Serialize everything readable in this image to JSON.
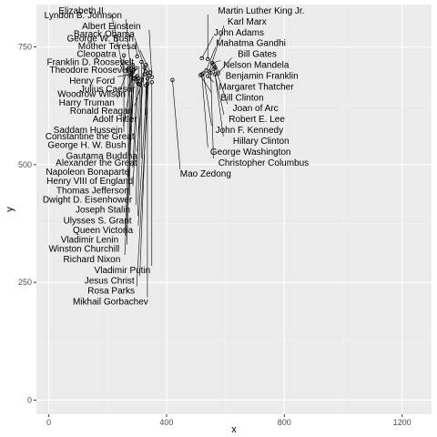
{
  "chart_data": {
    "type": "scatter",
    "xlabel": "x",
    "ylabel": "y",
    "xlim": [
      -42,
      1300
    ],
    "ylim": [
      -30,
      840
    ],
    "xticks": [
      0,
      400,
      800,
      1200
    ],
    "yticks": [
      0,
      250,
      500,
      750
    ],
    "grid": true,
    "points": [
      {
        "label": "Constantine the Great",
        "x": 255,
        "y": 732
      },
      {
        "label": "George W. Bush",
        "x": 300,
        "y": 730
      },
      {
        "label": "Alexander the Great",
        "x": 315,
        "y": 718
      },
      {
        "label": "Vladimir Lenin",
        "x": 285,
        "y": 712
      },
      {
        "label": "Woodrow Wilson",
        "x": 295,
        "y": 705
      },
      {
        "label": "Julius Caesar",
        "x": 330,
        "y": 712
      },
      {
        "label": "Gautama Buddha",
        "x": 325,
        "y": 706
      },
      {
        "label": "Cleopatra",
        "x": 290,
        "y": 702
      },
      {
        "label": "Winston Churchill",
        "x": 285,
        "y": 700
      },
      {
        "label": "Barack Obama",
        "x": 330,
        "y": 698
      },
      {
        "label": "Queen Victoria",
        "x": 335,
        "y": 694
      },
      {
        "label": "Mother Teresa",
        "x": 345,
        "y": 696
      },
      {
        "label": "Henry VIII of England",
        "x": 270,
        "y": 700
      },
      {
        "label": "Napoleon Bonaparte",
        "x": 300,
        "y": 688
      },
      {
        "label": "Ronald Reagan",
        "x": 325,
        "y": 692
      },
      {
        "label": "Rosa Parks",
        "x": 340,
        "y": 689
      },
      {
        "label": "Jesus Christ",
        "x": 335,
        "y": 683
      },
      {
        "label": "Dwight D. Eisenhower",
        "x": 275,
        "y": 690
      },
      {
        "label": "Thomas Jefferson",
        "x": 305,
        "y": 684
      },
      {
        "label": "John Adams",
        "x": 520,
        "y": 726
      },
      {
        "label": "Martin Luther King Jr.",
        "x": 540,
        "y": 724
      },
      {
        "label": "Harry Truman",
        "x": 270,
        "y": 704
      },
      {
        "label": "Nelson Mandela",
        "x": 555,
        "y": 716
      },
      {
        "label": "Benjamin Franklin",
        "x": 560,
        "y": 712
      },
      {
        "label": "Elizabeth II",
        "x": 250,
        "y": 710
      },
      {
        "label": "Robert E. Lee",
        "x": 560,
        "y": 703
      },
      {
        "label": "Joan of Arc",
        "x": 565,
        "y": 707
      },
      {
        "label": "Albert Einstein",
        "x": 350,
        "y": 686
      },
      {
        "label": "Mahatma Gandhi",
        "x": 535,
        "y": 700
      },
      {
        "label": "Karl Marx",
        "x": 545,
        "y": 698
      },
      {
        "label": "Theodore Roosevelt",
        "x": 300,
        "y": 676
      },
      {
        "label": "Mao Zedong",
        "x": 420,
        "y": 680
      },
      {
        "label": "Christopher Columbus",
        "x": 550,
        "y": 695
      },
      {
        "label": "Hillary Clinton",
        "x": 565,
        "y": 692
      },
      {
        "label": "Richard Nixon",
        "x": 290,
        "y": 684
      },
      {
        "label": "Ulysses S. Grant",
        "x": 315,
        "y": 680
      },
      {
        "label": "Mikhail Gorbachev",
        "x": 335,
        "y": 672
      },
      {
        "label": "John F. Kennedy",
        "x": 525,
        "y": 694
      },
      {
        "label": "Bill Gates",
        "x": 575,
        "y": 694
      },
      {
        "label": "Lyndon B. Johnson",
        "x": 280,
        "y": 686
      },
      {
        "label": "Margaret Thatcher",
        "x": 540,
        "y": 688
      },
      {
        "label": "Franklin D. Roosevelt",
        "x": 305,
        "y": 672
      },
      {
        "label": "Vladimir Putin",
        "x": 350,
        "y": 675
      },
      {
        "label": "Saddam Hussein",
        "x": 285,
        "y": 696
      },
      {
        "label": "Adolf Hitler",
        "x": 330,
        "y": 668
      },
      {
        "label": "George Washington",
        "x": 520,
        "y": 692
      },
      {
        "label": "Henry Ford",
        "x": 280,
        "y": 692
      },
      {
        "label": "Joseph Stalin",
        "x": 310,
        "y": 670
      },
      {
        "label": "Bill Clinton",
        "x": 515,
        "y": 690
      },
      {
        "label": "George H. W. Bush",
        "x": 290,
        "y": 682
      }
    ]
  }
}
